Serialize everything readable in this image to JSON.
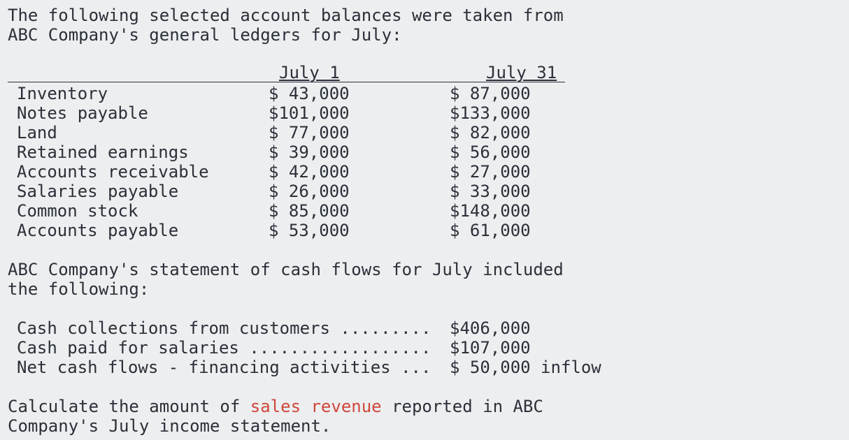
{
  "intro": {
    "line1": "The following selected account balances were taken from",
    "line2": "ABC Company's general ledgers for July:"
  },
  "table": {
    "headers": [
      "July 1",
      "July 31"
    ],
    "rows": [
      {
        "label": "Inventory",
        "july1": "$ 43,000",
        "july31": "$ 87,000"
      },
      {
        "label": "Notes payable",
        "july1": "$101,000",
        "july31": "$133,000"
      },
      {
        "label": "Land",
        "july1": "$ 77,000",
        "july31": "$ 82,000"
      },
      {
        "label": "Retained earnings",
        "july1": "$ 39,000",
        "july31": "$ 56,000"
      },
      {
        "label": "Accounts receivable",
        "july1": "$ 42,000",
        "july31": "$ 27,000"
      },
      {
        "label": "Salaries payable",
        "july1": "$ 26,000",
        "july31": "$ 33,000"
      },
      {
        "label": "Common stock",
        "july1": "$ 85,000",
        "july31": "$148,000"
      },
      {
        "label": "Accounts payable",
        "july1": "$ 53,000",
        "july31": "$ 61,000"
      }
    ]
  },
  "cash_flow_intro": {
    "line1": "ABC Company's statement of cash flows for July included",
    "line2": "the following:"
  },
  "cash_flows": [
    {
      "label": "Cash collections from customers .........",
      "value": "$406,000"
    },
    {
      "label": "Cash paid for salaries ..................",
      "value": "$107,000"
    },
    {
      "label": "Net cash flows - financing activities ...",
      "value": "$ 50,000 inflow"
    }
  ],
  "question": {
    "line1_before": "Calculate the amount of ",
    "line1_highlight": "sales revenue",
    "line1_after": " reported in ABC",
    "line2": "Company's July income statement."
  },
  "colors": {
    "text": "#2b3038",
    "highlight": "#d0473a",
    "background": "#eceef0"
  }
}
